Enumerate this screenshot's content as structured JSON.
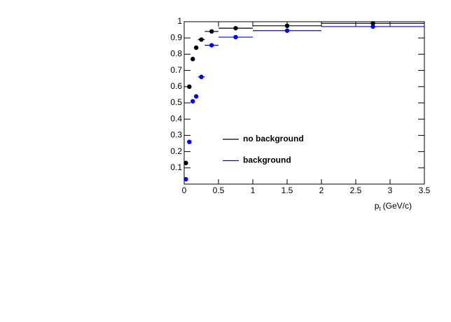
{
  "chart_data": {
    "type": "scatter",
    "x": [
      0.025,
      0.075,
      0.125,
      0.175,
      0.25,
      0.4,
      0.75,
      1.5,
      2.75
    ],
    "bins": [
      0,
      0.05,
      0.1,
      0.15,
      0.2,
      0.3,
      0.5,
      1,
      2,
      3.5
    ],
    "series": [
      {
        "name": "no background",
        "color": "#000000",
        "values": [
          0.13,
          0.6,
          0.77,
          0.84,
          0.89,
          0.94,
          0.96,
          0.975,
          0.99
        ]
      },
      {
        "name": "background",
        "color": "#0000ff",
        "values": [
          0.03,
          0.26,
          0.51,
          0.54,
          0.66,
          0.855,
          0.905,
          0.945,
          0.97
        ]
      }
    ],
    "xlabel": [
      "p",
      "t",
      "(GeV/c)"
    ],
    "xlim": [
      0,
      3.5
    ],
    "xticks": [
      0,
      0.5,
      1,
      1.5,
      2,
      2.5,
      3,
      3.5
    ],
    "ylim": [
      0,
      1
    ],
    "yticks": [
      0.1,
      0.2,
      0.3,
      0.4,
      0.5,
      0.6,
      0.7,
      0.8,
      0.9,
      1
    ]
  }
}
